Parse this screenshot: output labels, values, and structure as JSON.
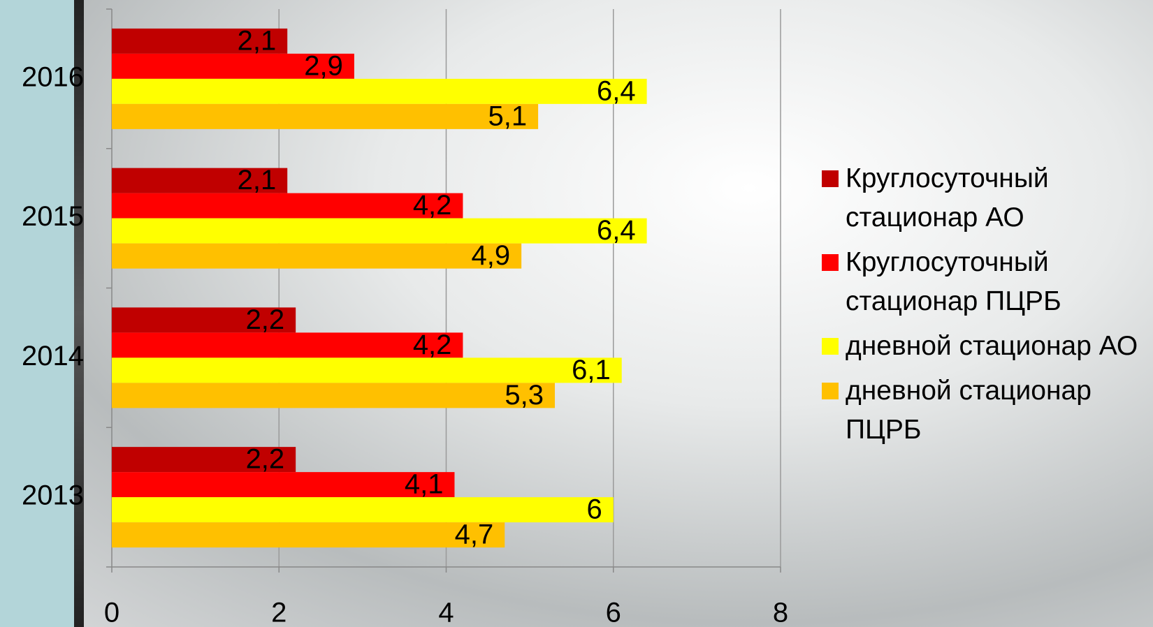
{
  "chart_data": {
    "type": "hbar",
    "categories": [
      "2013",
      "2014",
      "2015",
      "2016"
    ],
    "series": [
      {
        "name": "Круглосуточный стационар АО",
        "color": "#c00000",
        "values": [
          2.2,
          2.2,
          2.1,
          2.1
        ],
        "value_labels": [
          "2,2",
          "2,2",
          "2,1",
          "2,1"
        ]
      },
      {
        "name": "Круглосуточный стационар ПЦРБ",
        "color": "#ff0000",
        "values": [
          4.1,
          4.2,
          4.2,
          2.9
        ],
        "value_labels": [
          "4,1",
          "4,2",
          "4,2",
          "2,9"
        ]
      },
      {
        "name": "дневной стационар АО",
        "color": "#ffff00",
        "values": [
          6,
          6.1,
          6.4,
          6.4
        ],
        "value_labels": [
          "6",
          "6,1",
          "6,4",
          "6,4"
        ]
      },
      {
        "name": "дневной стационар ПЦРБ",
        "color": "#ffc000",
        "values": [
          4.7,
          5.3,
          4.9,
          5.1
        ],
        "value_labels": [
          "4,7",
          "5,3",
          "4,9",
          "5,1"
        ]
      }
    ],
    "xlim": [
      0,
      8
    ],
    "xticks": [
      0,
      2,
      4,
      6,
      8
    ],
    "grid": true,
    "legend": "right"
  }
}
